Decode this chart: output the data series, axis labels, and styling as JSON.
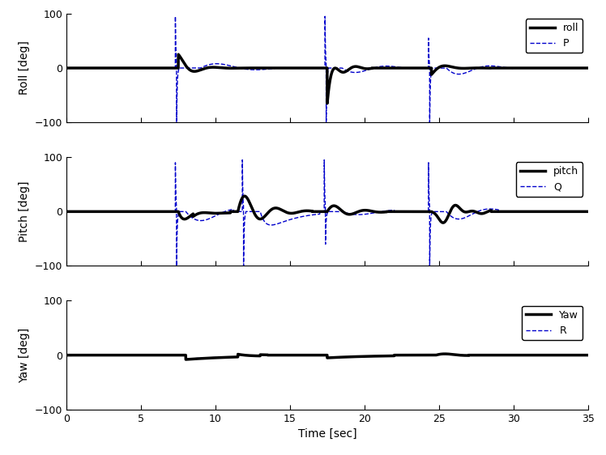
{
  "xlim": [
    0,
    35
  ],
  "ylim": [
    -100,
    100
  ],
  "xlabel": "Time [sec]",
  "ylabel_roll": "Roll [deg]",
  "ylabel_pitch": "Pitch [deg]",
  "ylabel_yaw": "Yaw [deg]",
  "xticks": [
    0,
    5,
    10,
    15,
    20,
    25,
    30,
    35
  ],
  "yticks": [
    -100,
    0,
    100
  ],
  "roll_color": "#000000",
  "pitch_color": "#000000",
  "yaw_color": "#000000",
  "rate_color": "#0000cc",
  "roll_lw": 2.5,
  "rate_lw": 1.0,
  "legend_roll": "roll",
  "legend_P": "P",
  "legend_pitch": "pitch",
  "legend_Q": "Q",
  "legend_yaw": "Yaw",
  "legend_R": "R",
  "figsize": [
    7.48,
    5.62
  ],
  "dpi": 100
}
